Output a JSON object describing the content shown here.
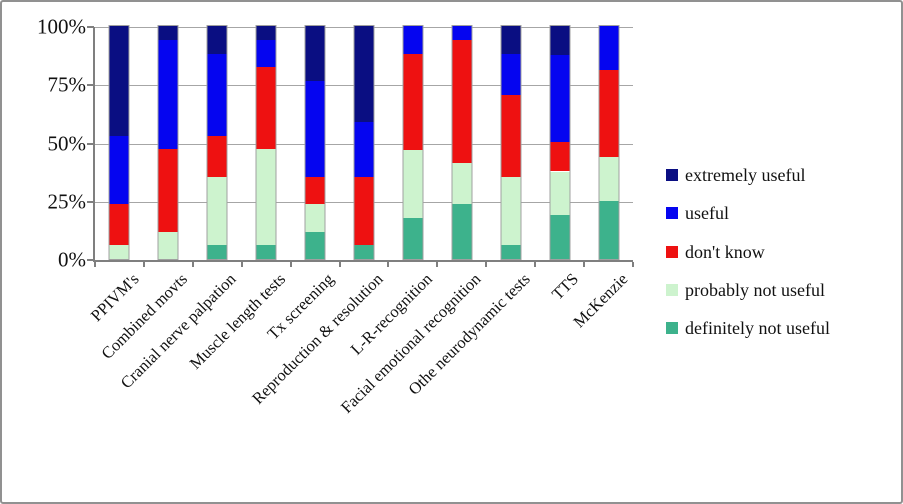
{
  "window": {
    "background": "#ffffff",
    "frame_border_color": "#919191"
  },
  "chart_data": {
    "type": "bar",
    "variant": "stacked-100-percent-column",
    "title": "",
    "xlabel": "",
    "ylabel": "",
    "grid": true,
    "gridline_color": "#A6A6A6",
    "axis_color": "#7F7F7F",
    "categories": [
      "PPIVM's",
      "Combined movts",
      "Cranial nerve palpation",
      "Muscle length tests",
      "Tx screening",
      "Reproduction & resolution",
      "L-R-recognition",
      "Facial emotional recognition",
      "Othe neurodynamic tests",
      "TTS",
      "McKenzie"
    ],
    "series": [
      {
        "name": "definitely not useful",
        "color": "#3DB28C",
        "values": [
          0,
          0,
          5.9,
          5.9,
          11.8,
          5.9,
          17.6,
          23.5,
          5.9,
          18.8,
          25.0
        ]
      },
      {
        "name": "probably not useful",
        "color": "#CDF3CE",
        "values": [
          5.9,
          11.8,
          29.4,
          41.2,
          11.8,
          0,
          29.4,
          17.6,
          29.4,
          18.8,
          18.8
        ]
      },
      {
        "name": "don't know",
        "color": "#EE1111",
        "values": [
          17.6,
          35.3,
          17.6,
          35.3,
          11.8,
          29.4,
          41.2,
          52.9,
          35.3,
          12.5,
          37.5
        ]
      },
      {
        "name": "useful",
        "color": "#0505F0",
        "values": [
          29.4,
          47.1,
          35.3,
          11.8,
          41.2,
          23.5,
          11.8,
          5.9,
          17.6,
          37.5,
          18.7
        ]
      },
      {
        "name": "extremely useful",
        "color": "#0A0E82",
        "values": [
          47.1,
          5.9,
          11.8,
          5.9,
          23.5,
          41.2,
          0,
          0,
          11.8,
          12.5,
          0
        ]
      }
    ],
    "y_axis": {
      "min": 0,
      "max": 100,
      "ticks": [
        {
          "label": "100%",
          "value": 100
        },
        {
          "label": "75%",
          "value": 75
        },
        {
          "label": "50%",
          "value": 50
        },
        {
          "label": "25%",
          "value": 25
        },
        {
          "label": "0%",
          "value": 0
        }
      ]
    },
    "legend": {
      "position": "right",
      "items": [
        "extremely useful",
        "useful",
        "don't know",
        "probably not useful",
        "definitely not useful"
      ]
    }
  }
}
